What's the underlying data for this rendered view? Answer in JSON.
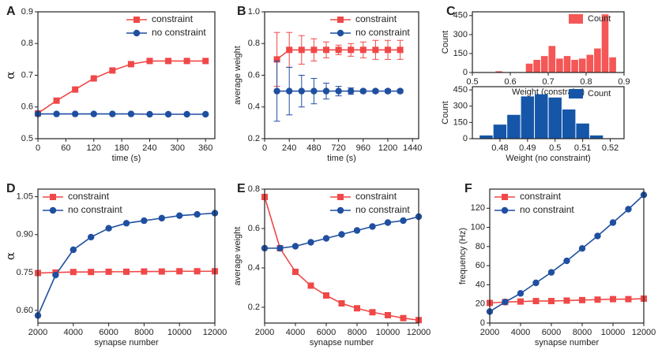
{
  "chart_data": [
    {
      "panel": "A",
      "type": "line",
      "xlabel": "time (s)",
      "ylabel": "α",
      "legend": "upper right",
      "x": [
        0,
        40,
        80,
        120,
        160,
        200,
        240,
        280,
        320,
        360
      ],
      "series": [
        {
          "name": "constraint",
          "color": "#f04848",
          "marker": "square",
          "values": [
            0.58,
            0.62,
            0.655,
            0.69,
            0.715,
            0.735,
            0.745,
            0.745,
            0.745,
            0.745
          ]
        },
        {
          "name": "no constraint",
          "color": "#1f4fa0",
          "marker": "circle",
          "values": [
            0.578,
            0.578,
            0.578,
            0.578,
            0.578,
            0.578,
            0.577,
            0.577,
            0.577,
            0.577
          ]
        }
      ],
      "xlim": [
        0,
        380
      ],
      "xticks": [
        0,
        60,
        120,
        180,
        240,
        300,
        360
      ],
      "ylim": [
        0.5,
        0.9
      ],
      "yticks": [
        0.5,
        0.6,
        0.7,
        0.8,
        0.9
      ]
    },
    {
      "panel": "B",
      "type": "line",
      "xlabel": "time (s)",
      "ylabel": "average weight",
      "legend": "upper right",
      "x": [
        120,
        240,
        360,
        480,
        600,
        720,
        840,
        960,
        1080,
        1200,
        1320
      ],
      "series": [
        {
          "name": "constraint",
          "color": "#f04848",
          "marker": "square",
          "values": [
            0.7,
            0.76,
            0.76,
            0.76,
            0.76,
            0.76,
            0.76,
            0.76,
            0.76,
            0.76,
            0.76
          ],
          "errors": [
            0.17,
            0.11,
            0.09,
            0.07,
            0.05,
            0.03,
            0.04,
            0.05,
            0.06,
            0.06,
            0.06
          ]
        },
        {
          "name": "no constraint",
          "color": "#1f4fa0",
          "marker": "circle",
          "values": [
            0.5,
            0.5,
            0.5,
            0.5,
            0.5,
            0.5,
            0.5,
            0.5,
            0.5,
            0.5,
            0.5
          ],
          "errors": [
            0.19,
            0.15,
            0.1,
            0.08,
            0.05,
            0.03,
            0.02,
            0.01,
            0.01,
            0.01,
            0.01
          ]
        }
      ],
      "xlim": [
        0,
        1500
      ],
      "xticks": [
        0,
        240,
        480,
        720,
        960,
        1200,
        1440
      ],
      "ylim": [
        0.2,
        1.0
      ],
      "yticks": [
        0.2,
        0.4,
        0.6,
        0.8,
        {
          "value": 1,
          "label": "1.0"
        }
      ]
    },
    {
      "panel": "C",
      "type": "histogram",
      "xlabel": "Weight (constraint)",
      "ylabel": "Count",
      "legend": "upper right",
      "name": "Count",
      "color": "#f55656",
      "bins": [
        0.56,
        0.58,
        0.6,
        0.62,
        0.64,
        0.66,
        0.68,
        0.7,
        0.72,
        0.74,
        0.76,
        0.78,
        0.8,
        0.82,
        0.84,
        0.86,
        0.88
      ],
      "values": [
        10,
        0,
        0,
        0,
        70,
        100,
        130,
        210,
        110,
        130,
        100,
        110,
        140,
        190,
        460,
        120
      ],
      "xlim": [
        0.5,
        0.9
      ],
      "xticks": [
        0.5,
        0.6,
        0.7,
        0.8,
        0.9
      ],
      "ylim": [
        0,
        480
      ],
      "yticks": [
        0,
        150,
        300,
        450
      ]
    },
    {
      "type": "histogram",
      "xlabel": "Weight (no constraint)",
      "ylabel": "Count",
      "legend": "upper right",
      "name": "Count",
      "color": "#1556a8",
      "bins": [
        0.4725,
        0.4775,
        0.4825,
        0.4875,
        0.4925,
        0.4975,
        0.5025,
        0.5075,
        0.5125,
        0.5175
      ],
      "values": [
        30,
        130,
        220,
        390,
        410,
        380,
        270,
        140,
        30
      ],
      "xlim": [
        0.47,
        0.525
      ],
      "xticks": [
        0.48,
        0.49,
        0.5,
        0.51,
        0.52
      ],
      "ylim": [
        0,
        480
      ],
      "yticks": [
        0,
        150,
        300,
        450
      ]
    },
    {
      "panel": "D",
      "type": "line",
      "xlabel": "synapse number",
      "ylabel": "α",
      "legend": "upper left",
      "x": [
        2000,
        3000,
        4000,
        5000,
        6000,
        7000,
        8000,
        9000,
        10000,
        11000,
        12000
      ],
      "series": [
        {
          "name": "constraint",
          "color": "#f04848",
          "marker": "square",
          "values": [
            0.748,
            0.75,
            0.752,
            0.752,
            0.753,
            0.753,
            0.754,
            0.754,
            0.755,
            0.755,
            0.755
          ]
        },
        {
          "name": "no constraint",
          "color": "#1f4fa0",
          "marker": "circle",
          "values": [
            0.58,
            0.74,
            0.84,
            0.89,
            0.925,
            0.945,
            0.955,
            0.965,
            0.975,
            0.98,
            0.985
          ]
        }
      ],
      "xlim": [
        2000,
        12000
      ],
      "xticks": [
        2000,
        4000,
        6000,
        8000,
        10000,
        12000
      ],
      "ylim": [
        0.55,
        1.08
      ],
      "yticks": [
        {
          "value": 0.6,
          "label": "0.60"
        },
        0.75,
        {
          "value": 0.9,
          "label": "0.90"
        },
        1.05
      ]
    },
    {
      "panel": "E",
      "type": "line",
      "xlabel": "synapse number",
      "ylabel": "average weight",
      "legend": "upper right",
      "x": [
        2000,
        3000,
        4000,
        5000,
        6000,
        7000,
        8000,
        9000,
        10000,
        11000,
        12000
      ],
      "series": [
        {
          "name": "constraint",
          "color": "#f04848",
          "marker": "square",
          "values": [
            0.76,
            0.5,
            0.38,
            0.31,
            0.26,
            0.22,
            0.195,
            0.175,
            0.16,
            0.145,
            0.135
          ]
        },
        {
          "name": "no constraint",
          "color": "#1f4fa0",
          "marker": "circle",
          "values": [
            0.5,
            0.5,
            0.51,
            0.53,
            0.55,
            0.57,
            0.59,
            0.61,
            0.63,
            0.64,
            0.66
          ]
        }
      ],
      "xlim": [
        2000,
        12000
      ],
      "xticks": [
        2000,
        4000,
        6000,
        8000,
        10000,
        12000
      ],
      "ylim": [
        0.12,
        0.8
      ],
      "yticks": [
        0.2,
        0.4,
        0.6,
        0.8
      ]
    },
    {
      "panel": "F",
      "type": "line",
      "xlabel": "synapse number",
      "ylabel": "frequency (Hz)",
      "legend": "upper left",
      "x": [
        2000,
        3000,
        4000,
        5000,
        6000,
        7000,
        8000,
        9000,
        10000,
        11000,
        12000
      ],
      "series": [
        {
          "name": "constraint",
          "color": "#f04848",
          "marker": "square",
          "values": [
            21,
            22,
            22.5,
            23,
            23,
            23.5,
            24,
            24.5,
            25,
            25,
            25.5
          ]
        },
        {
          "name": "no constraint",
          "color": "#1f4fa0",
          "marker": "circle",
          "values": [
            12,
            22,
            31,
            42,
            53,
            65,
            78,
            91,
            105,
            119,
            134
          ]
        }
      ],
      "xlim": [
        2000,
        12000
      ],
      "xticks": [
        2000,
        4000,
        6000,
        8000,
        10000,
        12000
      ],
      "ylim": [
        0,
        140
      ],
      "yticks": [
        0,
        20,
        40,
        60,
        80,
        100,
        120
      ]
    }
  ]
}
